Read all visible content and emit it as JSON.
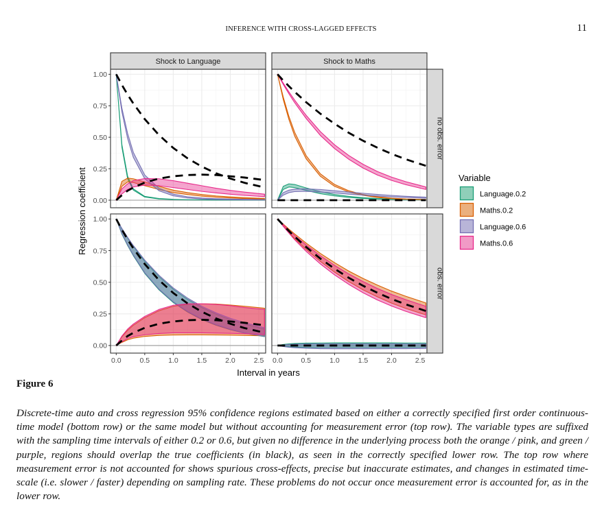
{
  "header": {
    "running_title": "INFERENCE WITH CROSS-LAGGED EFFECTS",
    "page_number": "11"
  },
  "figure": {
    "label": "Figure 6",
    "caption": "Discrete-time auto and cross regression 95% confidence regions estimated based on either a correctly specified first order continuous-time model (bottom row) or the same model but without accounting for measurement error (top row). The variable types are suffixed with the sampling time intervals of either 0.2 or 0.6, but given no difference in the underlying process both the orange / pink, and green / purple, regions should overlap the true coefficients (in black), as seen in the correctly specified lower row. The top row where measurement error is not accounted for shows spurious cross-effects, precise but inaccurate estimates, and changes in estimated time-scale (i.e. slower / faster) depending on sampling rate. These problems do not occur once measurement error is accounted for, as in the lower row."
  },
  "chart_data": {
    "type": "area",
    "xlabel": "Interval in years",
    "ylabel": "Regression coefficient",
    "xlim": [
      -0.1,
      2.62
    ],
    "ylim": [
      -0.06,
      1.04
    ],
    "x_ticks": [
      0.0,
      0.5,
      1.0,
      1.5,
      2.0,
      2.5
    ],
    "x_tick_labels": [
      "0.0",
      "0.5",
      "1.0",
      "1.5",
      "2.0",
      "2.5"
    ],
    "y_ticks": [
      0.0,
      0.25,
      0.5,
      0.75,
      1.0
    ],
    "y_tick_labels": [
      "0.00",
      "0.25",
      "0.50",
      "0.75",
      "1.00"
    ],
    "grid": true,
    "col_facets": [
      "Shock to Language",
      "Shock to Maths"
    ],
    "row_facets": [
      "no obs. error",
      "obs. error"
    ],
    "legend": {
      "title": "Variable",
      "position": "right",
      "entries": [
        {
          "name": "Language.0.2",
          "fill": "#8fcfb9",
          "stroke": "#1b9e77"
        },
        {
          "name": "Maths.0.2",
          "fill": "#ebb07e",
          "stroke": "#d95f02"
        },
        {
          "name": "Language.0.6",
          "fill": "#b8b5d8",
          "stroke": "#7570b3"
        },
        {
          "name": "Maths.0.6",
          "fill": "#f19ac6",
          "stroke": "#e7298a"
        }
      ]
    },
    "x": [
      0,
      0.1,
      0.2,
      0.3,
      0.5,
      0.75,
      1.0,
      1.25,
      1.5,
      1.75,
      2.0,
      2.25,
      2.6
    ],
    "panels": [
      {
        "row": "no obs. error",
        "col": "Shock to Language",
        "true_lines": [
          [
            1.0,
            0.915,
            0.838,
            0.768,
            0.644,
            0.517,
            0.415,
            0.333,
            0.267,
            0.214,
            0.172,
            0.138,
            0.101
          ],
          [
            0.0,
            0.04,
            0.075,
            0.1,
            0.14,
            0.172,
            0.19,
            0.2,
            0.203,
            0.2,
            0.19,
            0.18,
            0.16
          ]
        ],
        "series": [
          {
            "name": "Language.0.2",
            "lower": [
              1.0,
              0.42,
              0.17,
              0.08,
              0.025,
              0.01,
              0.005,
              0.003,
              0.002,
              0.001,
              0.001,
              0.001,
              0.001
            ],
            "upper": [
              1.0,
              0.44,
              0.19,
              0.09,
              0.03,
              0.013,
              0.007,
              0.004,
              0.003,
              0.002,
              0.002,
              0.002,
              0.002
            ]
          },
          {
            "name": "Maths.0.2",
            "lower": [
              0.0,
              0.11,
              0.145,
              0.14,
              0.115,
              0.085,
              0.06,
              0.045,
              0.032,
              0.024,
              0.018,
              0.013,
              0.009
            ],
            "upper": [
              0.0,
              0.15,
              0.175,
              0.17,
              0.145,
              0.11,
              0.08,
              0.06,
              0.045,
              0.034,
              0.026,
              0.02,
              0.014
            ]
          },
          {
            "name": "Language.0.6",
            "lower": [
              1.0,
              0.7,
              0.49,
              0.34,
              0.17,
              0.075,
              0.035,
              0.018,
              0.01,
              0.006,
              0.004,
              0.003,
              0.002
            ],
            "upper": [
              1.0,
              0.73,
              0.53,
              0.38,
              0.2,
              0.095,
              0.048,
              0.027,
              0.017,
              0.012,
              0.009,
              0.007,
              0.005
            ]
          },
          {
            "name": "Maths.0.6",
            "lower": [
              0.0,
              0.05,
              0.085,
              0.105,
              0.12,
              0.115,
              0.1,
              0.085,
              0.07,
              0.058,
              0.047,
              0.038,
              0.028
            ],
            "upper": [
              0.0,
              0.09,
              0.13,
              0.155,
              0.172,
              0.17,
              0.155,
              0.135,
              0.115,
              0.095,
              0.078,
              0.064,
              0.048
            ]
          }
        ]
      },
      {
        "row": "no obs. error",
        "col": "Shock to Maths",
        "true_lines": [
          [
            1.0,
            0.951,
            0.905,
            0.861,
            0.779,
            0.687,
            0.607,
            0.535,
            0.472,
            0.417,
            0.368,
            0.325,
            0.273
          ],
          [
            0.0,
            0.0,
            0.0,
            0.0,
            0.0,
            0.0,
            0.0,
            0.0,
            0.0,
            0.0,
            0.0,
            0.0,
            0.0
          ]
        ],
        "series": [
          {
            "name": "Language.0.2",
            "lower": [
              0.0,
              0.085,
              0.105,
              0.1,
              0.078,
              0.052,
              0.034,
              0.022,
              0.014,
              0.009,
              0.006,
              0.004,
              0.002
            ],
            "upper": [
              0.0,
              0.11,
              0.13,
              0.125,
              0.098,
              0.068,
              0.045,
              0.03,
              0.02,
              0.013,
              0.009,
              0.006,
              0.004
            ]
          },
          {
            "name": "Maths.0.2",
            "lower": [
              1.0,
              0.8,
              0.64,
              0.51,
              0.33,
              0.19,
              0.11,
              0.065,
              0.038,
              0.022,
              0.013,
              0.008,
              0.004
            ],
            "upper": [
              1.0,
              0.82,
              0.665,
              0.54,
              0.355,
              0.21,
              0.125,
              0.075,
              0.045,
              0.027,
              0.016,
              0.01,
              0.006
            ]
          },
          {
            "name": "Language.0.6",
            "lower": [
              0.0,
              0.04,
              0.06,
              0.068,
              0.07,
              0.065,
              0.057,
              0.048,
              0.04,
              0.033,
              0.027,
              0.022,
              0.016
            ],
            "upper": [
              0.0,
              0.06,
              0.08,
              0.088,
              0.09,
              0.085,
              0.075,
              0.065,
              0.055,
              0.046,
              0.038,
              0.031,
              0.024
            ]
          },
          {
            "name": "Maths.0.6",
            "lower": [
              1.0,
              0.92,
              0.845,
              0.775,
              0.65,
              0.515,
              0.41,
              0.325,
              0.255,
              0.2,
              0.157,
              0.123,
              0.085
            ],
            "upper": [
              1.0,
              0.93,
              0.86,
              0.795,
              0.675,
              0.545,
              0.44,
              0.355,
              0.285,
              0.228,
              0.183,
              0.147,
              0.105
            ]
          }
        ]
      },
      {
        "row": "obs. error",
        "col": "Shock to Language",
        "true_lines": [
          [
            1.0,
            0.915,
            0.838,
            0.768,
            0.644,
            0.517,
            0.415,
            0.333,
            0.267,
            0.214,
            0.172,
            0.138,
            0.101
          ],
          [
            0.0,
            0.04,
            0.075,
            0.1,
            0.14,
            0.172,
            0.19,
            0.2,
            0.203,
            0.2,
            0.19,
            0.18,
            0.16
          ]
        ],
        "series": [
          {
            "name": "Language.0.2",
            "lower": [
              1.0,
              0.88,
              0.79,
              0.71,
              0.57,
              0.44,
              0.34,
              0.265,
              0.205,
              0.16,
              0.125,
              0.098,
              0.07
            ],
            "upper": [
              1.0,
              0.92,
              0.85,
              0.785,
              0.665,
              0.545,
              0.445,
              0.365,
              0.3,
              0.248,
              0.205,
              0.17,
              0.13
            ]
          },
          {
            "name": "Maths.0.2",
            "lower": [
              0.0,
              0.025,
              0.045,
              0.058,
              0.072,
              0.08,
              0.083,
              0.084,
              0.084,
              0.083,
              0.082,
              0.08,
              0.077
            ],
            "upper": [
              0.0,
              0.07,
              0.12,
              0.16,
              0.22,
              0.275,
              0.31,
              0.325,
              0.33,
              0.328,
              0.32,
              0.31,
              0.295
            ]
          },
          {
            "name": "Language.0.6",
            "lower": [
              1.0,
              0.885,
              0.795,
              0.715,
              0.575,
              0.445,
              0.345,
              0.27,
              0.21,
              0.165,
              0.13,
              0.1,
              0.072
            ],
            "upper": [
              1.0,
              0.925,
              0.855,
              0.79,
              0.675,
              0.555,
              0.455,
              0.375,
              0.31,
              0.258,
              0.215,
              0.18,
              0.14
            ]
          },
          {
            "name": "Maths.0.6",
            "lower": [
              0.0,
              0.03,
              0.055,
              0.07,
              0.085,
              0.095,
              0.1,
              0.1,
              0.1,
              0.098,
              0.096,
              0.093,
              0.088
            ],
            "upper": [
              0.0,
              0.075,
              0.13,
              0.17,
              0.23,
              0.285,
              0.318,
              0.33,
              0.33,
              0.325,
              0.315,
              0.3,
              0.285
            ]
          }
        ]
      },
      {
        "row": "obs. error",
        "col": "Shock to Maths",
        "true_lines": [
          [
            1.0,
            0.951,
            0.905,
            0.861,
            0.779,
            0.687,
            0.607,
            0.535,
            0.472,
            0.417,
            0.368,
            0.325,
            0.273
          ],
          [
            0.0,
            0.0,
            0.0,
            0.0,
            0.0,
            0.0,
            0.0,
            0.0,
            0.0,
            0.0,
            0.0,
            0.0,
            0.0
          ]
        ],
        "series": [
          {
            "name": "Language.0.2",
            "lower": [
              0.0,
              -0.005,
              -0.01,
              -0.012,
              -0.015,
              -0.016,
              -0.016,
              -0.016,
              -0.016,
              -0.016,
              -0.015,
              -0.015,
              -0.014
            ],
            "upper": [
              0.0,
              0.008,
              0.013,
              0.016,
              0.019,
              0.02,
              0.021,
              0.021,
              0.021,
              0.021,
              0.021,
              0.02,
              0.02
            ]
          },
          {
            "name": "Maths.0.2",
            "lower": [
              1.0,
              0.945,
              0.895,
              0.845,
              0.76,
              0.665,
              0.58,
              0.505,
              0.44,
              0.385,
              0.335,
              0.293,
              0.242
            ],
            "upper": [
              1.0,
              0.96,
              0.92,
              0.882,
              0.81,
              0.728,
              0.655,
              0.588,
              0.53,
              0.478,
              0.43,
              0.389,
              0.337
            ]
          },
          {
            "name": "Language.0.6",
            "lower": [
              0.0,
              -0.008,
              -0.014,
              -0.018,
              -0.022,
              -0.025,
              -0.026,
              -0.026,
              -0.026,
              -0.026,
              -0.025,
              -0.025,
              -0.024
            ],
            "upper": [
              0.0,
              0.005,
              0.008,
              0.01,
              0.012,
              0.013,
              0.013,
              0.013,
              0.013,
              0.013,
              0.013,
              0.012,
              0.012
            ]
          },
          {
            "name": "Maths.0.6",
            "lower": [
              1.0,
              0.942,
              0.888,
              0.836,
              0.745,
              0.645,
              0.558,
              0.483,
              0.417,
              0.36,
              0.312,
              0.27,
              0.22
            ],
            "upper": [
              1.0,
              0.955,
              0.912,
              0.87,
              0.795,
              0.71,
              0.633,
              0.565,
              0.505,
              0.451,
              0.403,
              0.362,
              0.31
            ]
          }
        ]
      }
    ]
  }
}
